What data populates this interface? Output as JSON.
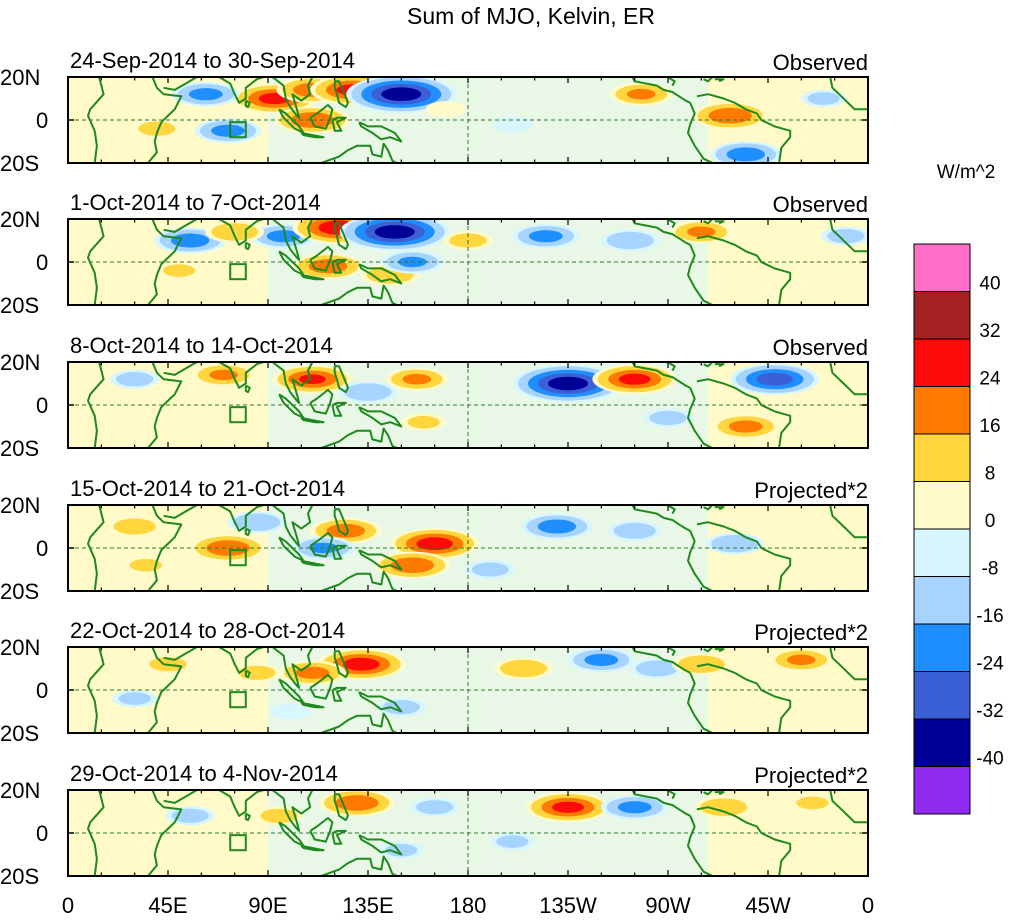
{
  "title": "Sum of MJO, Kelvin, ER",
  "colors": {
    "positive": [
      "#fffac8",
      "#ffd63d",
      "#ff7a00",
      "#ff0a0a",
      "#a52222",
      "#ff6ec7"
    ],
    "negative": [
      "#d7f6ff",
      "#a6d4ff",
      "#1f8fff",
      "#3a5fd6",
      "#000096",
      "#8f2bf0"
    ],
    "land": "#1e8a1e",
    "equator": "#2a7a2a"
  },
  "chart_data": {
    "type": "heatmap",
    "title": "Sum of MJO, Kelvin, ER",
    "units": "W/m^2",
    "colorbar": {
      "levels": [
        -40,
        -32,
        -24,
        -16,
        -8,
        0,
        8,
        16,
        24,
        32,
        40
      ],
      "tick_labels": [
        "40",
        "32",
        "24",
        "16",
        "8",
        "0",
        "-8",
        "-16",
        "-24",
        "-32",
        "-40"
      ],
      "colors_top_to_bottom": [
        "#ff6ec7",
        "#a52222",
        "#ff0a0a",
        "#ff7a00",
        "#ffd63d",
        "#fffac8",
        "#d7f6ff",
        "#a6d4ff",
        "#1f8fff",
        "#3a5fd6",
        "#000096",
        "#8f2bf0"
      ]
    },
    "x_ticks": [
      {
        "lon": 0,
        "label": "0"
      },
      {
        "lon": 45,
        "label": "45E"
      },
      {
        "lon": 90,
        "label": "90E"
      },
      {
        "lon": 135,
        "label": "135E"
      },
      {
        "lon": 180,
        "label": "180"
      },
      {
        "lon": 225,
        "label": "135W"
      },
      {
        "lon": 270,
        "label": "90W"
      },
      {
        "lon": 315,
        "label": "45W"
      },
      {
        "lon": 360,
        "label": "0"
      }
    ],
    "y_ticks": [
      {
        "lat": 20,
        "label": "20N"
      },
      {
        "lat": 0,
        "label": "0"
      },
      {
        "lat": -20,
        "label": "20S"
      }
    ],
    "xlim": [
      0,
      360
    ],
    "ylim": [
      -20,
      20
    ],
    "panels": [
      {
        "date_range": "24-Sep-2014 to 30-Sep-2014",
        "type_label": "Observed",
        "anomalies": [
          {
            "lon": 93,
            "lat": 10,
            "value": 26
          },
          {
            "lon": 110,
            "lat": 14,
            "value": 20
          },
          {
            "lon": 128,
            "lat": 14,
            "value": 26
          },
          {
            "lon": 110,
            "lat": 0,
            "value": 22
          },
          {
            "lon": 62,
            "lat": 12,
            "value": -18
          },
          {
            "lon": 72,
            "lat": -5,
            "value": -18
          },
          {
            "lon": 150,
            "lat": 12,
            "value": -38
          },
          {
            "lon": 258,
            "lat": 12,
            "value": 16
          },
          {
            "lon": 298,
            "lat": 2,
            "value": 22
          },
          {
            "lon": 40,
            "lat": -4,
            "value": 10
          },
          {
            "lon": 305,
            "lat": -16,
            "value": -20
          },
          {
            "lon": 200,
            "lat": -2,
            "value": -6
          },
          {
            "lon": 340,
            "lat": 10,
            "value": -8
          },
          {
            "lon": 170,
            "lat": 5,
            "value": 6
          }
        ]
      },
      {
        "date_range": "1-Oct-2014 to 7-Oct-2014",
        "type_label": "Observed",
        "anomalies": [
          {
            "lon": 55,
            "lat": 10,
            "value": -20
          },
          {
            "lon": 97,
            "lat": 12,
            "value": -18
          },
          {
            "lon": 122,
            "lat": 16,
            "value": 30
          },
          {
            "lon": 147,
            "lat": 14,
            "value": -38
          },
          {
            "lon": 117,
            "lat": -2,
            "value": 20
          },
          {
            "lon": 145,
            "lat": -6,
            "value": 14
          },
          {
            "lon": 75,
            "lat": 14,
            "value": 14
          },
          {
            "lon": 215,
            "lat": 12,
            "value": -18
          },
          {
            "lon": 253,
            "lat": 10,
            "value": -14
          },
          {
            "lon": 285,
            "lat": 14,
            "value": 16
          },
          {
            "lon": 155,
            "lat": 0,
            "value": -16
          },
          {
            "lon": 180,
            "lat": 10,
            "value": 10
          },
          {
            "lon": 50,
            "lat": -4,
            "value": 8
          },
          {
            "lon": 350,
            "lat": 12,
            "value": -10
          }
        ]
      },
      {
        "date_range": "8-Oct-2014 to 14-Oct-2014",
        "type_label": "Observed",
        "anomalies": [
          {
            "lon": 70,
            "lat": 14,
            "value": 16
          },
          {
            "lon": 110,
            "lat": 12,
            "value": 24
          },
          {
            "lon": 157,
            "lat": 12,
            "value": 16
          },
          {
            "lon": 135,
            "lat": 6,
            "value": -14
          },
          {
            "lon": 225,
            "lat": 10,
            "value": -38
          },
          {
            "lon": 255,
            "lat": 12,
            "value": 26
          },
          {
            "lon": 318,
            "lat": 12,
            "value": -28
          },
          {
            "lon": 305,
            "lat": -10,
            "value": 18
          },
          {
            "lon": 30,
            "lat": 12,
            "value": -10
          },
          {
            "lon": 160,
            "lat": -8,
            "value": 8
          },
          {
            "lon": 270,
            "lat": -6,
            "value": -10
          },
          {
            "lon": 80,
            "lat": -4,
            "value": 6
          }
        ]
      },
      {
        "date_range": "15-Oct-2014 to 21-Oct-2014",
        "type_label": "Projected*2",
        "anomalies": [
          {
            "lon": 72,
            "lat": 0,
            "value": 22
          },
          {
            "lon": 125,
            "lat": 8,
            "value": 20
          },
          {
            "lon": 165,
            "lat": 2,
            "value": 28
          },
          {
            "lon": 155,
            "lat": -8,
            "value": 22
          },
          {
            "lon": 115,
            "lat": 0,
            "value": -16
          },
          {
            "lon": 85,
            "lat": 12,
            "value": -14
          },
          {
            "lon": 220,
            "lat": 10,
            "value": -20
          },
          {
            "lon": 255,
            "lat": 8,
            "value": -12
          },
          {
            "lon": 300,
            "lat": 2,
            "value": -14
          },
          {
            "lon": 30,
            "lat": 10,
            "value": 12
          },
          {
            "lon": 190,
            "lat": -10,
            "value": -10
          },
          {
            "lon": 35,
            "lat": -8,
            "value": 8
          }
        ]
      },
      {
        "date_range": "22-Oct-2014 to 28-Oct-2014",
        "type_label": "Projected*2",
        "anomalies": [
          {
            "lon": 132,
            "lat": 12,
            "value": 28
          },
          {
            "lon": 110,
            "lat": 8,
            "value": 18
          },
          {
            "lon": 205,
            "lat": 10,
            "value": 14
          },
          {
            "lon": 240,
            "lat": 14,
            "value": -18
          },
          {
            "lon": 265,
            "lat": 10,
            "value": -12
          },
          {
            "lon": 285,
            "lat": 12,
            "value": 14
          },
          {
            "lon": 330,
            "lat": 14,
            "value": 16
          },
          {
            "lon": 45,
            "lat": 12,
            "value": 10
          },
          {
            "lon": 85,
            "lat": 8,
            "value": 10
          },
          {
            "lon": 150,
            "lat": -8,
            "value": -10
          },
          {
            "lon": 30,
            "lat": -4,
            "value": -8
          },
          {
            "lon": 100,
            "lat": -10,
            "value": -6
          }
        ]
      },
      {
        "date_range": "29-Oct-2014 to 4-Nov-2014",
        "type_label": "Projected*2",
        "anomalies": [
          {
            "lon": 130,
            "lat": 14,
            "value": 22
          },
          {
            "lon": 225,
            "lat": 12,
            "value": 26
          },
          {
            "lon": 255,
            "lat": 12,
            "value": -18
          },
          {
            "lon": 295,
            "lat": 12,
            "value": 14
          },
          {
            "lon": 165,
            "lat": 12,
            "value": -10
          },
          {
            "lon": 55,
            "lat": 8,
            "value": -10
          },
          {
            "lon": 95,
            "lat": 8,
            "value": 10
          },
          {
            "lon": 335,
            "lat": 14,
            "value": 8
          },
          {
            "lon": 150,
            "lat": -8,
            "value": -8
          },
          {
            "lon": 200,
            "lat": -4,
            "value": -8
          },
          {
            "lon": 60,
            "lat": -10,
            "value": 6
          }
        ]
      }
    ]
  }
}
